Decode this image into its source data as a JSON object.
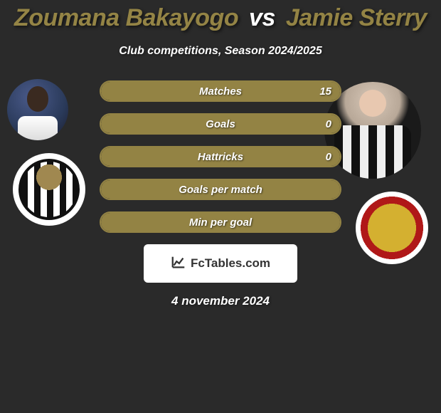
{
  "colors": {
    "player1": "#948445",
    "player2": "#938344",
    "background": "#2a2a2a",
    "white": "#ffffff"
  },
  "header": {
    "player1_name": "Zoumana Bakayogo",
    "vs": "vs",
    "player2_name": "Jamie Sterry",
    "subtitle": "Club competitions, Season 2024/2025"
  },
  "stats": [
    {
      "label": "Matches",
      "p2_value": "15",
      "fill_pct": 100
    },
    {
      "label": "Goals",
      "p2_value": "0",
      "fill_pct": 100
    },
    {
      "label": "Hattricks",
      "p2_value": "0",
      "fill_pct": 100
    },
    {
      "label": "Goals per match",
      "p2_value": "",
      "fill_pct": 100
    },
    {
      "label": "Min per goal",
      "p2_value": "",
      "fill_pct": 100
    }
  ],
  "branding": {
    "site": "FcTables.com"
  },
  "date": "4 november 2024"
}
